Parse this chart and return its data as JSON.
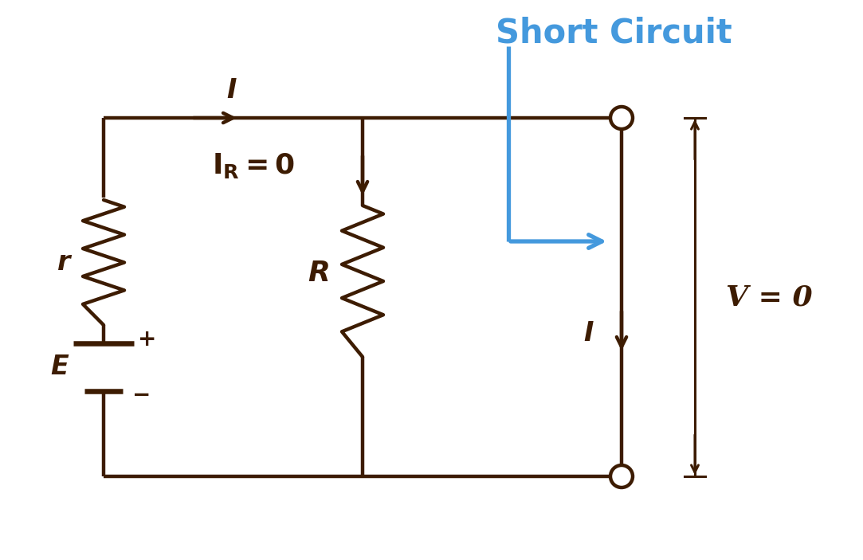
{
  "title": "Short Circuit",
  "title_color": "#4499DD",
  "circuit_color": "#3D1C02",
  "short_circuit_color": "#4499DD",
  "bg_color": "#FFFFFF",
  "line_width": 3.2,
  "labels": {
    "I_top": "I",
    "I_R": "I_R = 0",
    "R_label": "R",
    "r_label": "r",
    "E_label": "E",
    "V_label": "V = 0",
    "I_right": "I",
    "plus": "+",
    "minus": "−"
  }
}
